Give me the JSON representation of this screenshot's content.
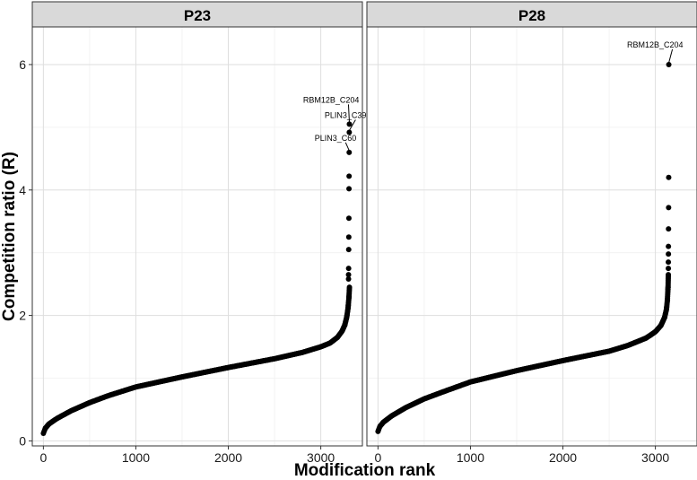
{
  "chart_data": {
    "type": "scatter",
    "xlabel": "Modification rank",
    "ylabel": "Competition ratio (R)",
    "xlim": [
      -120,
      3450
    ],
    "ylim": [
      -0.08,
      6.6
    ],
    "x_ticks": [
      0,
      1000,
      2000,
      3000
    ],
    "y_ticks": [
      0,
      2,
      4,
      6
    ],
    "grid": true,
    "panels": [
      {
        "name": "P23",
        "n": 3310,
        "curve": [
          [
            0,
            0.12
          ],
          [
            20,
            0.2
          ],
          [
            60,
            0.27
          ],
          [
            150,
            0.36
          ],
          [
            300,
            0.48
          ],
          [
            500,
            0.61
          ],
          [
            700,
            0.72
          ],
          [
            1000,
            0.86
          ],
          [
            1500,
            1.02
          ],
          [
            2000,
            1.17
          ],
          [
            2500,
            1.31
          ],
          [
            2800,
            1.41
          ],
          [
            3000,
            1.5
          ],
          [
            3100,
            1.56
          ],
          [
            3180,
            1.65
          ],
          [
            3230,
            1.75
          ],
          [
            3260,
            1.85
          ],
          [
            3280,
            1.97
          ],
          [
            3295,
            2.12
          ],
          [
            3305,
            2.3
          ],
          [
            3310,
            2.45
          ]
        ],
        "outliers": [
          {
            "rank": 3300,
            "r": 2.58
          },
          {
            "rank": 3300,
            "r": 2.65
          },
          {
            "rank": 3301,
            "r": 2.75
          },
          {
            "rank": 3302,
            "r": 3.05
          },
          {
            "rank": 3303,
            "r": 3.25
          },
          {
            "rank": 3304,
            "r": 3.55
          },
          {
            "rank": 3305,
            "r": 4.02
          },
          {
            "rank": 3306,
            "r": 4.22
          },
          {
            "rank": 3307,
            "r": 4.6
          },
          {
            "rank": 3308,
            "r": 4.92
          },
          {
            "rank": 3309,
            "r": 5.05
          }
        ],
        "annotations": [
          {
            "label": "RBM12B_C204",
            "rank": 3309,
            "r": 5.05
          },
          {
            "label": "PLIN3_C39",
            "rank": 3308,
            "r": 4.92
          },
          {
            "label": "PLIN3_C60",
            "rank": 3307,
            "r": 4.6
          }
        ]
      },
      {
        "name": "P28",
        "n": 3140,
        "curve": [
          [
            0,
            0.15
          ],
          [
            20,
            0.23
          ],
          [
            60,
            0.3
          ],
          [
            150,
            0.4
          ],
          [
            300,
            0.53
          ],
          [
            500,
            0.67
          ],
          [
            700,
            0.78
          ],
          [
            1000,
            0.94
          ],
          [
            1500,
            1.12
          ],
          [
            2000,
            1.28
          ],
          [
            2500,
            1.43
          ],
          [
            2700,
            1.52
          ],
          [
            2900,
            1.64
          ],
          [
            3000,
            1.74
          ],
          [
            3060,
            1.84
          ],
          [
            3100,
            1.97
          ],
          [
            3120,
            2.1
          ],
          [
            3130,
            2.25
          ],
          [
            3137,
            2.45
          ],
          [
            3140,
            2.65
          ]
        ],
        "outliers": [
          {
            "rank": 3140,
            "r": 2.75
          },
          {
            "rank": 3140,
            "r": 2.85
          },
          {
            "rank": 3141,
            "r": 2.98
          },
          {
            "rank": 3141,
            "r": 3.1
          },
          {
            "rank": 3142,
            "r": 3.38
          },
          {
            "rank": 3143,
            "r": 3.72
          },
          {
            "rank": 3144,
            "r": 4.2
          },
          {
            "rank": 3145,
            "r": 6.0
          }
        ],
        "annotations": [
          {
            "label": "RBM12B_C204",
            "rank": 3145,
            "r": 6.0
          }
        ]
      }
    ]
  }
}
